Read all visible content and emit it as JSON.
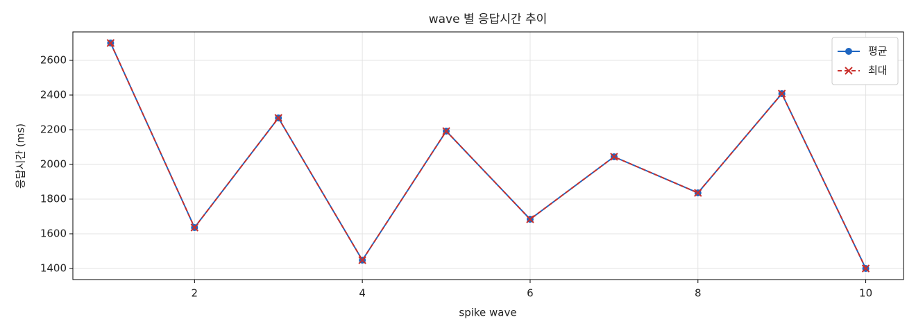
{
  "chart_data": {
    "type": "line",
    "title": "wave 별 응답시간 추이",
    "x_label": "spike wave",
    "y_label": "응답시간 (ms)",
    "x": [
      1,
      2,
      3,
      4,
      5,
      6,
      7,
      8,
      9,
      10
    ],
    "series": [
      {
        "name": "평균",
        "color": "#1f66c1",
        "marker": "circle",
        "linestyle": "solid",
        "values": [
          2700,
          1636,
          2268,
          1448,
          2192,
          1684,
          2044,
          1836,
          2408,
          1400
        ]
      },
      {
        "name": "최대",
        "color": "#c9302c",
        "marker": "x",
        "linestyle": "dashed",
        "values": [
          2700,
          1636,
          2268,
          1448,
          2192,
          1684,
          2044,
          1836,
          2408,
          1400
        ]
      }
    ],
    "xlim": [
      0.55,
      10.45
    ],
    "xticks": [
      2,
      4,
      6,
      8,
      10
    ],
    "ylim": [
      1336,
      2764
    ],
    "yticks": [
      1400,
      1600,
      1800,
      2000,
      2200,
      2400,
      2600
    ],
    "grid": true,
    "legend": "upper-right"
  }
}
